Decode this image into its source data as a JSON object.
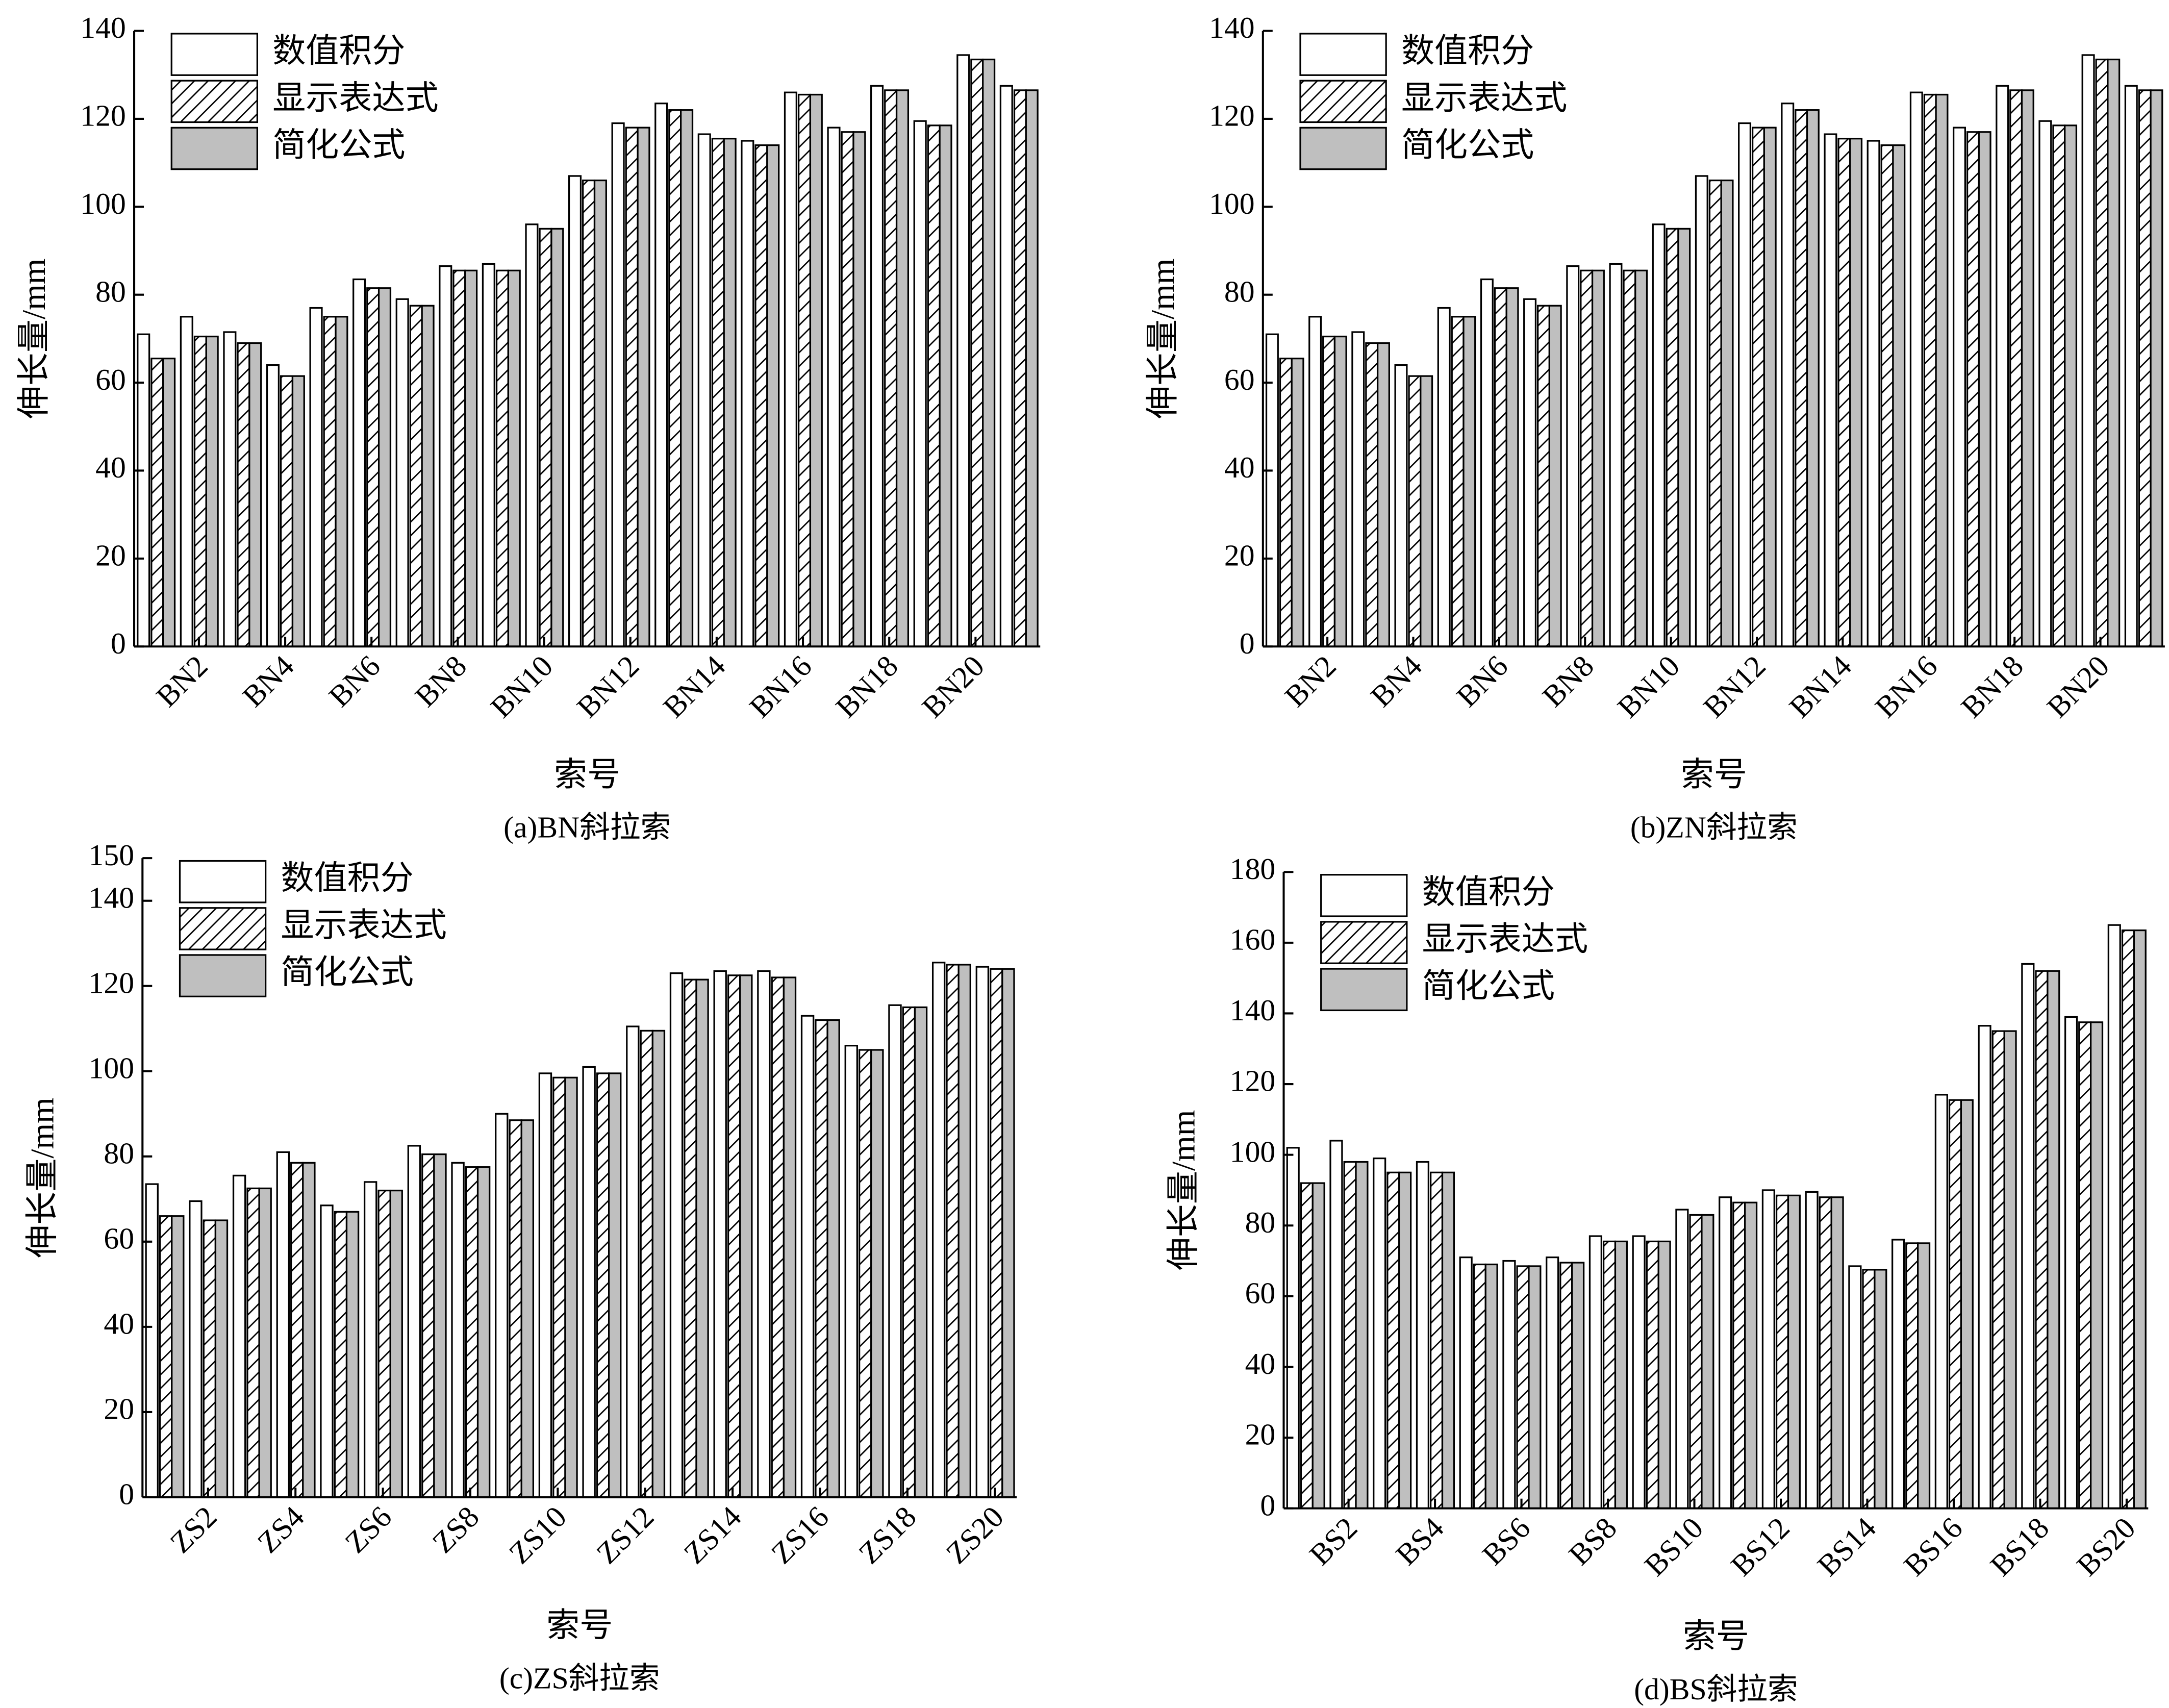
{
  "chart_data": [
    {
      "type": "bar",
      "caption": "(a)BN斜拉索",
      "x_label": "索号",
      "y_label": "伸长量/mm",
      "categories": [
        null,
        "BN2",
        null,
        "BN4",
        null,
        "BN6",
        null,
        "BN8",
        null,
        "BN10",
        null,
        "BN12",
        null,
        "BN14",
        null,
        "BN16",
        null,
        "BN18",
        null,
        "BN20",
        null
      ],
      "series": [
        {
          "name": "数值积分",
          "color": "#ffffff",
          "hatch": false,
          "values": [
            71,
            75,
            71.5,
            64,
            77,
            83.5,
            79,
            86.5,
            87,
            96,
            107,
            119,
            123.5,
            116.5,
            115,
            126,
            118,
            127.5,
            119.5,
            134.5,
            127.5
          ]
        },
        {
          "name": "显示表达式",
          "color": "#ffffff",
          "hatch": true,
          "values": [
            65.5,
            70.5,
            69,
            61.5,
            75,
            81.5,
            77.5,
            85.5,
            85.5,
            95,
            106,
            118,
            122,
            115.5,
            114,
            125.5,
            117,
            126.5,
            118.5,
            133.5,
            126.5
          ]
        },
        {
          "name": "简化公式",
          "color": "#bfbfbf",
          "hatch": false,
          "values": [
            65.5,
            70.5,
            69,
            61.5,
            75,
            81.5,
            77.5,
            85.5,
            85.5,
            95,
            106,
            118,
            122,
            115.5,
            114,
            125.5,
            117,
            126.5,
            118.5,
            133.5,
            126.5
          ]
        }
      ],
      "ylim": [
        0,
        140
      ],
      "yticks": [
        0,
        20,
        40,
        60,
        80,
        100,
        120,
        140
      ]
    },
    {
      "type": "bar",
      "caption": "(b)ZN斜拉索",
      "x_label": "索号",
      "y_label": "伸长量/mm",
      "categories": [
        null,
        "BN2",
        null,
        "BN4",
        null,
        "BN6",
        null,
        "BN8",
        null,
        "BN10",
        null,
        "BN12",
        null,
        "BN14",
        null,
        "BN16",
        null,
        "BN18",
        null,
        "BN20",
        null
      ],
      "series": [
        {
          "name": "数值积分",
          "color": "#ffffff",
          "hatch": false,
          "values": [
            71,
            75,
            71.5,
            64,
            77,
            83.5,
            79,
            86.5,
            87,
            96,
            107,
            119,
            123.5,
            116.5,
            115,
            126,
            118,
            127.5,
            119.5,
            134.5,
            127.5
          ]
        },
        {
          "name": "显示表达式",
          "color": "#ffffff",
          "hatch": true,
          "values": [
            65.5,
            70.5,
            69,
            61.5,
            75,
            81.5,
            77.5,
            85.5,
            85.5,
            95,
            106,
            118,
            122,
            115.5,
            114,
            125.5,
            117,
            126.5,
            118.5,
            133.5,
            126.5
          ]
        },
        {
          "name": "简化公式",
          "color": "#bfbfbf",
          "hatch": false,
          "values": [
            65.5,
            70.5,
            69,
            61.5,
            75,
            81.5,
            77.5,
            85.5,
            85.5,
            95,
            106,
            118,
            122,
            115.5,
            114,
            125.5,
            117,
            126.5,
            118.5,
            133.5,
            126.5
          ]
        }
      ],
      "ylim": [
        0,
        140
      ],
      "yticks": [
        0,
        20,
        40,
        60,
        80,
        100,
        120,
        140
      ]
    },
    {
      "type": "bar",
      "caption": "(c)ZS斜拉索",
      "x_label": "索号",
      "y_label": "伸长量/mm",
      "categories": [
        null,
        "ZS2",
        null,
        "ZS4",
        null,
        "ZS6",
        null,
        "ZS8",
        null,
        "ZS10",
        null,
        "ZS12",
        null,
        "ZS14",
        null,
        "ZS16",
        null,
        "ZS18",
        null,
        "ZS20"
      ],
      "series": [
        {
          "name": "数值积分",
          "color": "#ffffff",
          "hatch": false,
          "values": [
            73.5,
            69.5,
            75.5,
            81,
            68.5,
            74,
            82.5,
            78.5,
            90,
            99.5,
            101,
            110.5,
            123,
            123.5,
            123.5,
            113,
            106,
            115.5,
            125.5,
            124.5
          ]
        },
        {
          "name": "显示表达式",
          "color": "#ffffff",
          "hatch": true,
          "values": [
            66,
            65,
            72.5,
            78.5,
            67,
            72,
            80.5,
            77.5,
            88.5,
            98.5,
            99.5,
            109.5,
            121.5,
            122.5,
            122,
            112,
            105,
            115,
            125,
            124
          ]
        },
        {
          "name": "简化公式",
          "color": "#bfbfbf",
          "hatch": false,
          "values": [
            66,
            65,
            72.5,
            78.5,
            67,
            72,
            80.5,
            77.5,
            88.5,
            98.5,
            99.5,
            109.5,
            121.5,
            122.5,
            122,
            112,
            105,
            115,
            125,
            124
          ]
        }
      ],
      "ylim": [
        0,
        150
      ],
      "yticks": [
        0,
        20,
        40,
        60,
        80,
        100,
        120,
        140,
        150
      ]
    },
    {
      "type": "bar",
      "caption": "(d)BS斜拉索",
      "x_label": "索号",
      "y_label": "伸长量/mm",
      "categories": [
        null,
        "BS2",
        null,
        "BS4",
        null,
        "BS6",
        null,
        "BS8",
        null,
        "BS10",
        null,
        "BS12",
        null,
        "BS14",
        null,
        "BS16",
        null,
        "BS18",
        null,
        "BS20"
      ],
      "series": [
        {
          "name": "数值积分",
          "color": "#ffffff",
          "hatch": false,
          "values": [
            102,
            104,
            99,
            98,
            71,
            70,
            71,
            77,
            77,
            84.5,
            88,
            90,
            89.5,
            68.5,
            76,
            117,
            136.5,
            154,
            139,
            165
          ]
        },
        {
          "name": "显示表达式",
          "color": "#ffffff",
          "hatch": true,
          "values": [
            92,
            98,
            95,
            95,
            69,
            68.5,
            69.5,
            75.5,
            75.5,
            83,
            86.5,
            88.5,
            88,
            67.5,
            75,
            115.5,
            135,
            152,
            137.5,
            163.5
          ]
        },
        {
          "name": "简化公式",
          "color": "#bfbfbf",
          "hatch": false,
          "values": [
            92,
            98,
            95,
            95,
            69,
            68.5,
            69.5,
            75.5,
            75.5,
            83,
            86.5,
            88.5,
            88,
            67.5,
            75,
            115.5,
            135,
            152,
            137.5,
            163.5
          ]
        }
      ],
      "ylim": [
        0,
        180
      ],
      "yticks": [
        0,
        20,
        40,
        60,
        80,
        100,
        120,
        140,
        160,
        180
      ]
    }
  ]
}
